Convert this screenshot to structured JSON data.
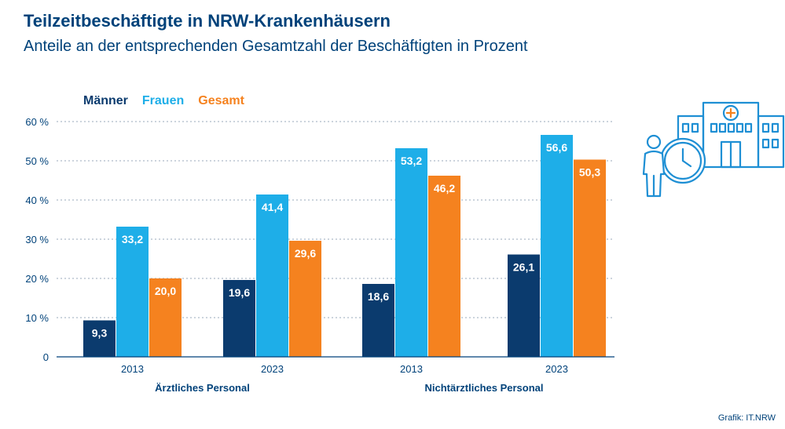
{
  "header": {
    "title": "Teilzeitbeschäftigte in NRW-Krankenhäusern",
    "subtitle": "Anteile an der entsprechenden Gesamtzahl der Beschäftigten in Prozent"
  },
  "credit": "Grafik: IT.NRW",
  "icon": "hospital-clock-person-icon",
  "chart_data": {
    "type": "bar",
    "title": "Teilzeitbeschäftigte in NRW-Krankenhäusern",
    "subtitle": "Anteile an der entsprechenden Gesamtzahl der Beschäftigten in Prozent",
    "xlabel": "",
    "ylabel": "",
    "ylim": [
      0,
      60
    ],
    "yticks": [
      0,
      10,
      20,
      30,
      40,
      50,
      60
    ],
    "ytick_labels": [
      "0",
      "10 %",
      "20 %",
      "30 %",
      "40 %",
      "50 %",
      "60 %"
    ],
    "grid": true,
    "legend_position": "top-left",
    "categories": [
      "2013",
      "2023",
      "2013",
      "2023"
    ],
    "groups": [
      {
        "label": "Ärztliches Personal",
        "categories": [
          "2013",
          "2023"
        ]
      },
      {
        "label": "Nichtärztliches Personal",
        "categories": [
          "2013",
          "2023"
        ]
      }
    ],
    "series": [
      {
        "name": "Männer",
        "color": "#0b3b6e",
        "values": [
          9.3,
          19.6,
          18.6,
          26.1
        ],
        "labels": [
          "9,3",
          "19,6",
          "18,6",
          "26,1"
        ]
      },
      {
        "name": "Frauen",
        "color": "#1eaee8",
        "values": [
          33.2,
          41.4,
          53.2,
          56.6
        ],
        "labels": [
          "33,2",
          "41,4",
          "53,2",
          "56,6"
        ]
      },
      {
        "name": "Gesamt",
        "color": "#f5821f",
        "values": [
          20.0,
          29.6,
          46.2,
          50.3
        ],
        "labels": [
          "20,0",
          "29,6",
          "46,2",
          "50,3"
        ]
      }
    ]
  }
}
